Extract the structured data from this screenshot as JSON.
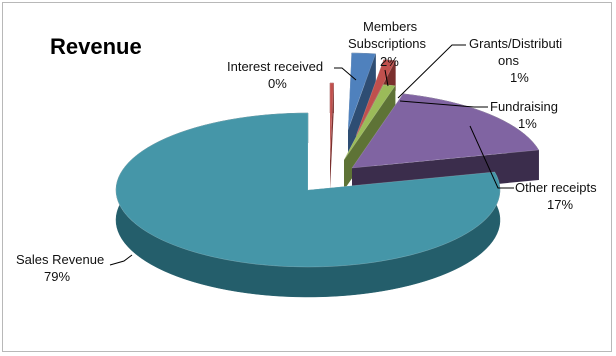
{
  "chart_data": {
    "type": "pie",
    "title": "Revenue",
    "slices": [
      {
        "name": "Sales Revenue",
        "value": 79,
        "percent_label": "79%",
        "color": "#4596A8",
        "dark": "#245E6B"
      },
      {
        "name": "Interest received",
        "value": 0.3,
        "percent_label": "0%",
        "color": "#C0504D",
        "dark": "#7A2F2D"
      },
      {
        "name": "Members Subscriptions",
        "value": 2,
        "percent_label": "2%",
        "color": "#4F81BD",
        "dark": "#2E4D73"
      },
      {
        "name": "Grants/Distributions",
        "value": 1,
        "percent_label": "1%",
        "color": "#C0504D",
        "dark": "#7A2F2D"
      },
      {
        "name": "Fundraising",
        "value": 1,
        "percent_label": "1%",
        "color": "#9BBB59",
        "dark": "#5E7336"
      },
      {
        "name": "Other receipts",
        "value": 17,
        "percent_label": "17%",
        "color": "#8064A2",
        "dark": "#3B2D4C"
      }
    ],
    "labels": {
      "sales_name": "Sales Revenue",
      "sales_pct": "79%",
      "interest_name": "Interest received",
      "interest_pct": "0%",
      "members_line1": "Members",
      "members_line2": "Subscriptions",
      "members_pct": "2%",
      "grants_line1": "Grants/Distributi",
      "grants_line2": "ons",
      "grants_pct": "1%",
      "fund_name": "Fundraising",
      "fund_pct": "1%",
      "other_name": "Other receipts",
      "other_pct": "17%"
    }
  }
}
